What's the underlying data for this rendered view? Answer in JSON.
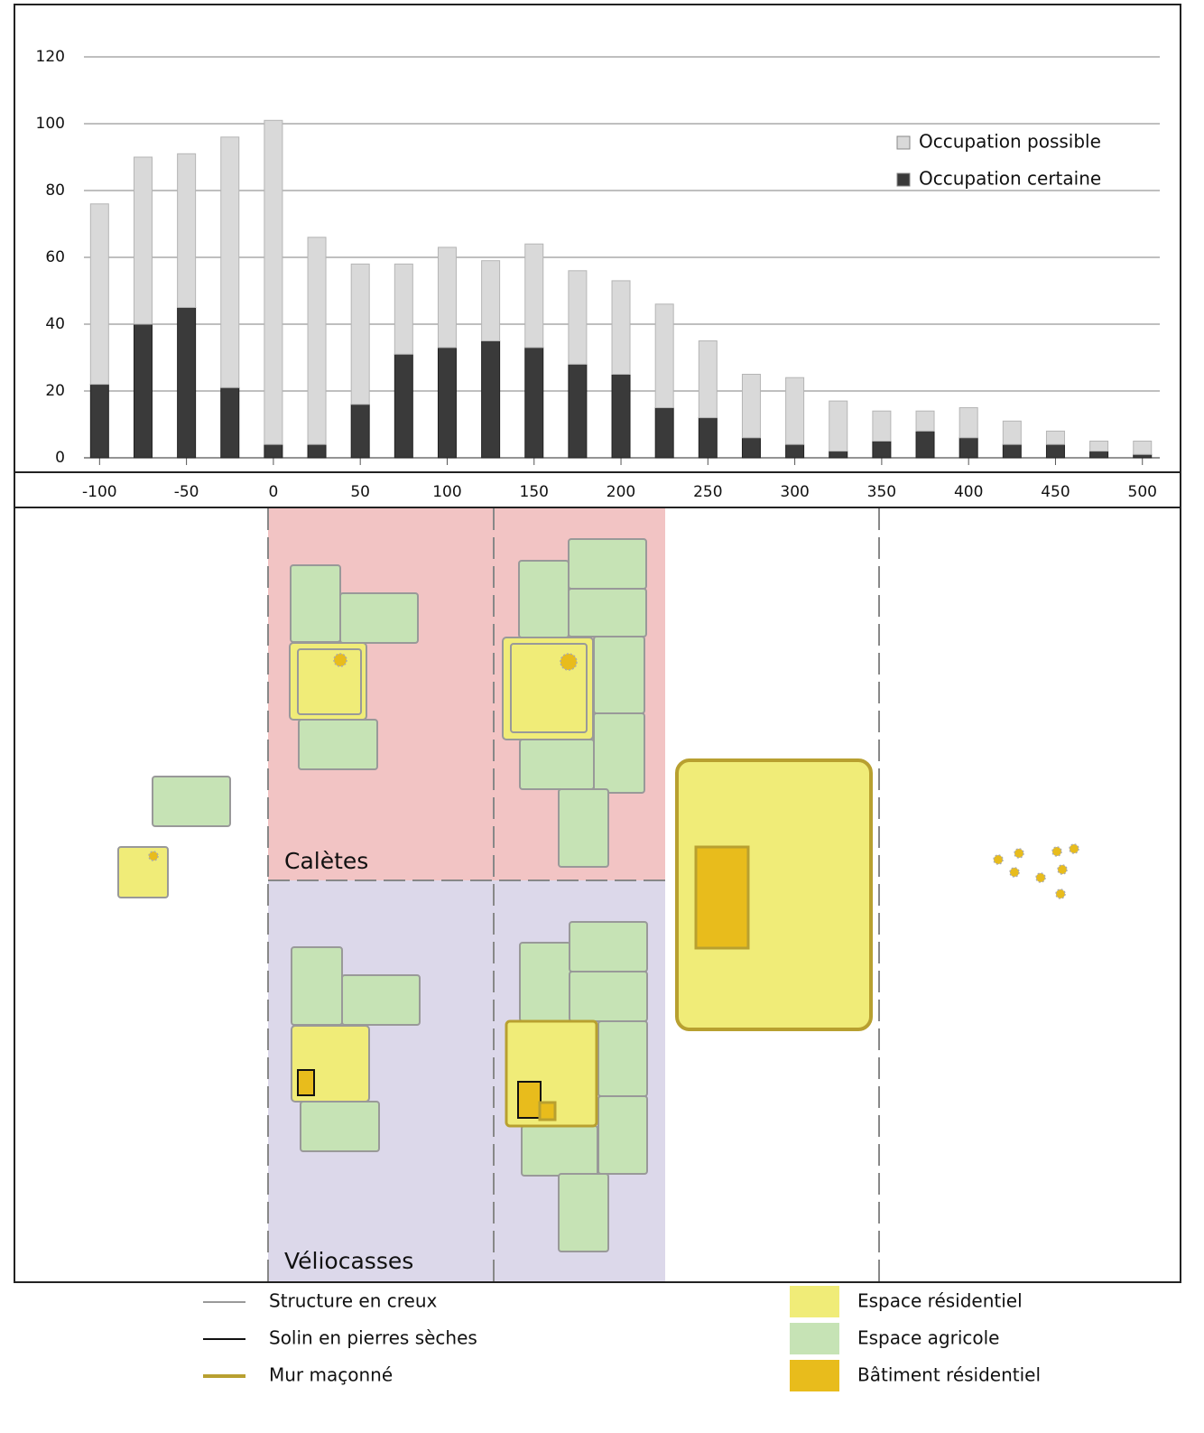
{
  "chart_data": {
    "type": "bar",
    "stacked": true,
    "x": [
      -100,
      -75,
      -50,
      -25,
      0,
      25,
      50,
      75,
      100,
      125,
      150,
      175,
      200,
      225,
      250,
      275,
      300,
      325,
      350,
      375,
      400,
      425,
      450,
      475,
      500
    ],
    "series": [
      {
        "name": "Occupation certaine",
        "color": "#3a3a3a",
        "values": [
          22,
          40,
          45,
          21,
          4,
          4,
          16,
          31,
          33,
          35,
          33,
          28,
          25,
          15,
          12,
          6,
          4,
          2,
          5,
          8,
          6,
          4,
          4,
          2,
          1
        ]
      },
      {
        "name": "Occupation possible",
        "color": "#d9d9d9",
        "values": [
          54,
          50,
          46,
          75,
          97,
          62,
          42,
          27,
          30,
          24,
          31,
          28,
          28,
          31,
          23,
          19,
          20,
          15,
          9,
          6,
          9,
          7,
          4,
          3,
          4
        ]
      }
    ],
    "xlim": [
      -109,
      510
    ],
    "xticks": [
      -100,
      -50,
      0,
      50,
      100,
      150,
      200,
      250,
      300,
      350,
      400,
      450,
      500
    ],
    "ylim": [
      0,
      120
    ],
    "yticks": [
      0,
      20,
      40,
      60,
      80,
      100,
      120
    ],
    "grid": true,
    "legend": "upper right"
  },
  "diagram": {
    "regions": [
      "Calètes",
      "Véliocasses"
    ],
    "legend": [
      "Structure en creux",
      "Solin en pierres sèches",
      "Mur maçonné",
      "Espace résidentiel",
      "Espace agricole",
      "Bâtiment résidentiel"
    ]
  }
}
